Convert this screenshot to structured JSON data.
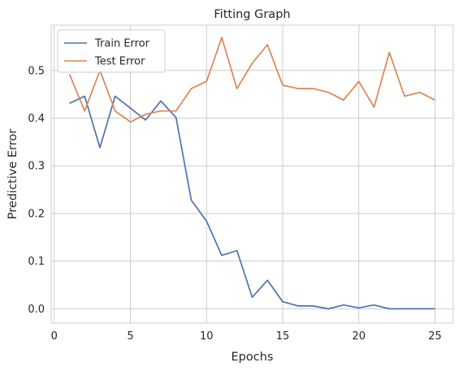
{
  "chart_data": {
    "type": "line",
    "title": "Fitting Graph",
    "xlabel": "Epochs",
    "ylabel": "Predictive Error",
    "xlim": [
      -0.2,
      26.2
    ],
    "ylim": [
      -0.03,
      0.595
    ],
    "xticks": [
      0,
      5,
      10,
      15,
      20,
      25
    ],
    "xtick_labels": [
      "0",
      "5",
      "10",
      "15",
      "20",
      "25"
    ],
    "yticks": [
      0.0,
      0.1,
      0.2,
      0.3,
      0.4,
      0.5
    ],
    "ytick_labels": [
      "0.0",
      "0.1",
      "0.2",
      "0.3",
      "0.4",
      "0.5"
    ],
    "grid": true,
    "legend_position": "top-left",
    "series": [
      {
        "name": "Train Error",
        "color": "#4c72b0",
        "x": [
          1,
          2,
          3,
          4,
          5,
          6,
          7,
          8,
          9,
          10,
          11,
          12,
          13,
          14,
          15,
          16,
          17,
          18,
          19,
          20,
          21,
          22,
          23,
          24,
          25
        ],
        "values": [
          0.431,
          0.446,
          0.338,
          0.446,
          0.421,
          0.396,
          0.436,
          0.401,
          0.228,
          0.184,
          0.112,
          0.122,
          0.024,
          0.06,
          0.015,
          0.006,
          0.006,
          0.0,
          0.008,
          0.002,
          0.008,
          0.0,
          0.0,
          0.0,
          0.0
        ]
      },
      {
        "name": "Test Error",
        "color": "#dd8452",
        "x": [
          1,
          2,
          3,
          4,
          5,
          6,
          7,
          8,
          9,
          10,
          11,
          12,
          13,
          14,
          15,
          16,
          17,
          18,
          19,
          20,
          21,
          22,
          23,
          24,
          25
        ],
        "values": [
          0.492,
          0.415,
          0.5,
          0.415,
          0.392,
          0.408,
          0.415,
          0.415,
          0.462,
          0.477,
          0.569,
          0.462,
          0.515,
          0.554,
          0.469,
          0.462,
          0.462,
          0.454,
          0.438,
          0.477,
          0.423,
          0.538,
          0.446,
          0.454,
          0.438
        ]
      }
    ]
  }
}
